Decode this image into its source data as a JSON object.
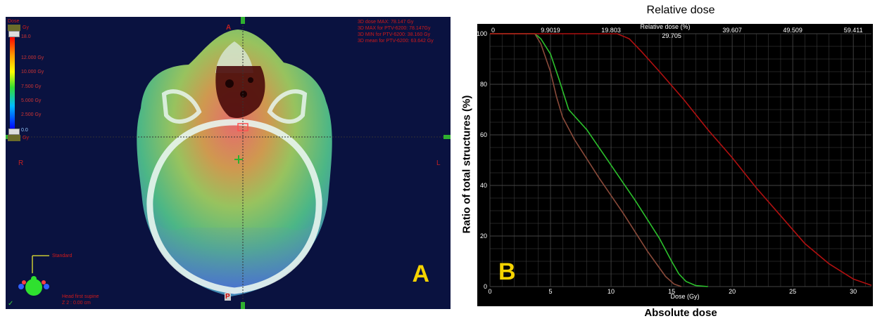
{
  "panel_a": {
    "letter": "A",
    "dose_header": "Dose",
    "dose_top_unit": "Gy",
    "dose_bottom_unit": "Gy",
    "scale_labels": [
      "18.0",
      "12.000 Gy",
      "10.000 Gy",
      "7.500 Gy",
      "5.000 Gy",
      "2.500 Gy",
      "0.0"
    ],
    "stats": [
      "3D dose MAX: 78.147 Gy",
      "3D MAX for PTV-6200: 78.147Gy",
      "3D MIN for PTV-6200: 38.160 Gy",
      "3D mean for PTV-6200: 63.642 Gy"
    ],
    "orientation": {
      "anterior": "A",
      "posterior": "P",
      "right": "R",
      "left": "L"
    },
    "view_label": "Standard",
    "patient_position": "Head first supine",
    "slice_position": "Z 2 : 0.00 cm",
    "check": "✓",
    "colors": {
      "background": "#0a1240",
      "text": "#d11a1a",
      "letter": "#f5d300"
    }
  },
  "panel_b": {
    "letter": "B"
  },
  "chart_data": {
    "type": "line",
    "title": "Relative dose",
    "xlabel_bottom_outer": "Absolute dose",
    "ylabel": "Ratio of total structures (%)",
    "inner_x_label": "Dose (Gy)",
    "inner_top_label": "Relative dose (%)",
    "xlim": [
      0,
      31.5
    ],
    "ylim": [
      0,
      100
    ],
    "x_ticks": [
      "0",
      "5",
      "10",
      "15",
      "20",
      "25",
      "30"
    ],
    "y_ticks": [
      "0",
      "20",
      "40",
      "60",
      "80",
      "100"
    ],
    "top_ticks": [
      {
        "label": "0",
        "dose": 0
      },
      {
        "label": "9.9019",
        "dose": 5.0
      },
      {
        "label": "19.803",
        "dose": 10.0
      },
      {
        "label": "29.705",
        "dose": 15.0
      },
      {
        "label": "39.607",
        "dose": 20.0
      },
      {
        "label": "49.509",
        "dose": 25.0
      },
      {
        "label": "59.411",
        "dose": 30.0
      }
    ],
    "grid": true,
    "series": [
      {
        "color": "#2cc12c",
        "x": [
          0,
          3.7,
          4.2,
          5.0,
          5.7,
          6.5,
          8.0,
          10.0,
          12.0,
          14.0,
          15.0,
          15.6,
          16.2,
          17.0,
          18.0
        ],
        "y": [
          100,
          100,
          98,
          92,
          82,
          70,
          62,
          48,
          34,
          19,
          10,
          5,
          2,
          0.4,
          0
        ]
      },
      {
        "color": "#8a4a3a",
        "x": [
          0,
          3.7,
          4.2,
          5.0,
          5.5,
          6.0,
          7.0,
          9.0,
          11.0,
          13.0,
          14.5,
          15.2,
          15.8
        ],
        "y": [
          100,
          100,
          96,
          85,
          75,
          67,
          58,
          43,
          29,
          14,
          4,
          1,
          0
        ]
      },
      {
        "color": "#b01010",
        "x": [
          0,
          10.5,
          11.5,
          12.5,
          14.0,
          16.0,
          18.0,
          20.0,
          22.0,
          24.0,
          26.0,
          28.0,
          30.0,
          31.5
        ],
        "y": [
          100,
          100,
          98,
          93,
          85,
          74,
          62,
          51,
          39,
          28,
          17,
          9,
          3,
          0.5
        ]
      }
    ],
    "colors": {
      "background": "#000000",
      "grid": "#444444",
      "ticks": "#ffffff"
    }
  }
}
